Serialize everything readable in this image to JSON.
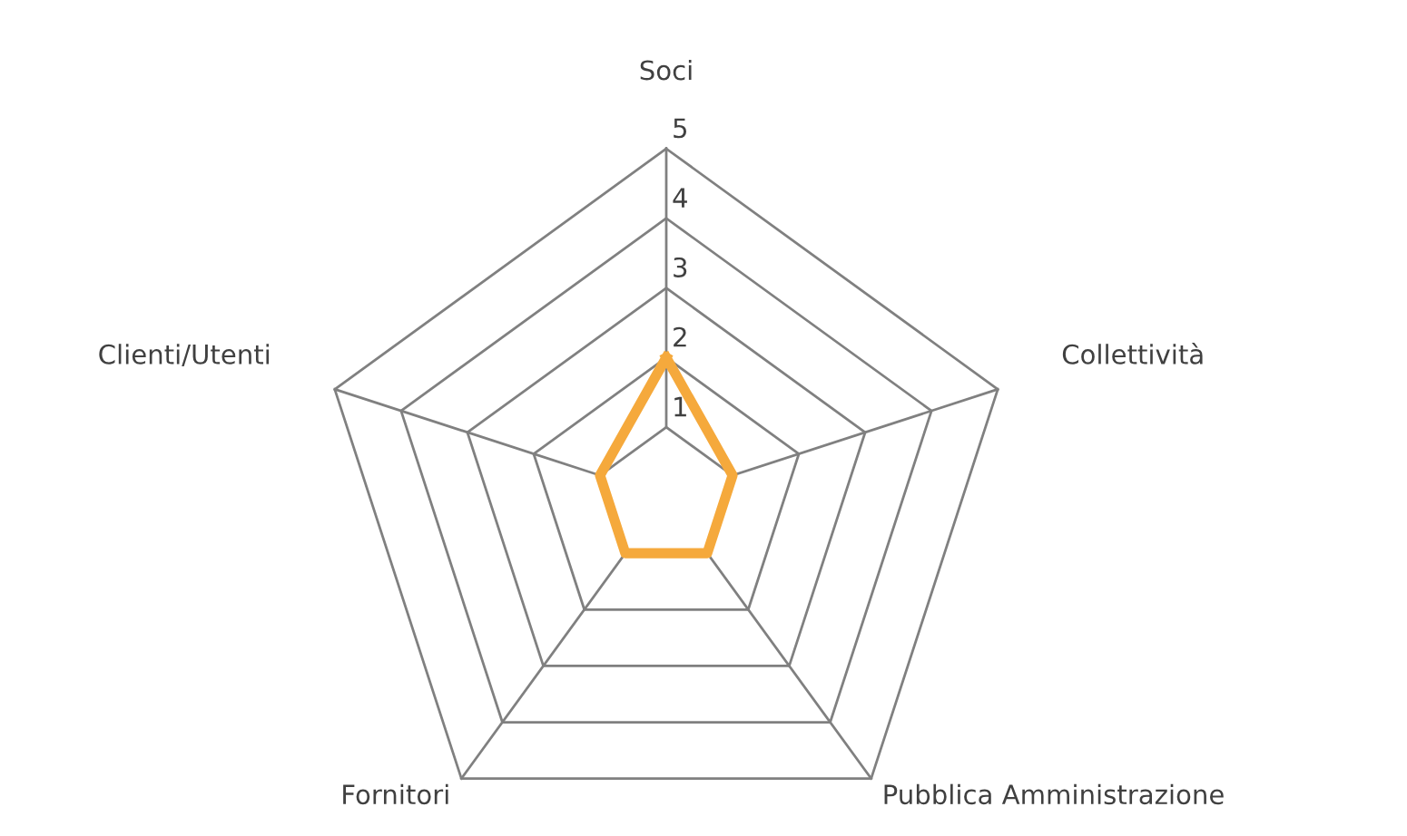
{
  "chart_data": {
    "type": "radar",
    "categories": [
      "Soci",
      "Collettività",
      "Pubblica Amministrazione",
      "Fornitori",
      "Clienti/Utenti"
    ],
    "series": [
      {
        "color": "#f5a93c",
        "values": [
          2,
          1,
          1,
          1,
          1
        ]
      }
    ],
    "ylim": [
      0,
      5
    ],
    "yticks": [
      1,
      2,
      3,
      4,
      5
    ],
    "grid": true,
    "marker": "none",
    "line_style": "solid"
  }
}
